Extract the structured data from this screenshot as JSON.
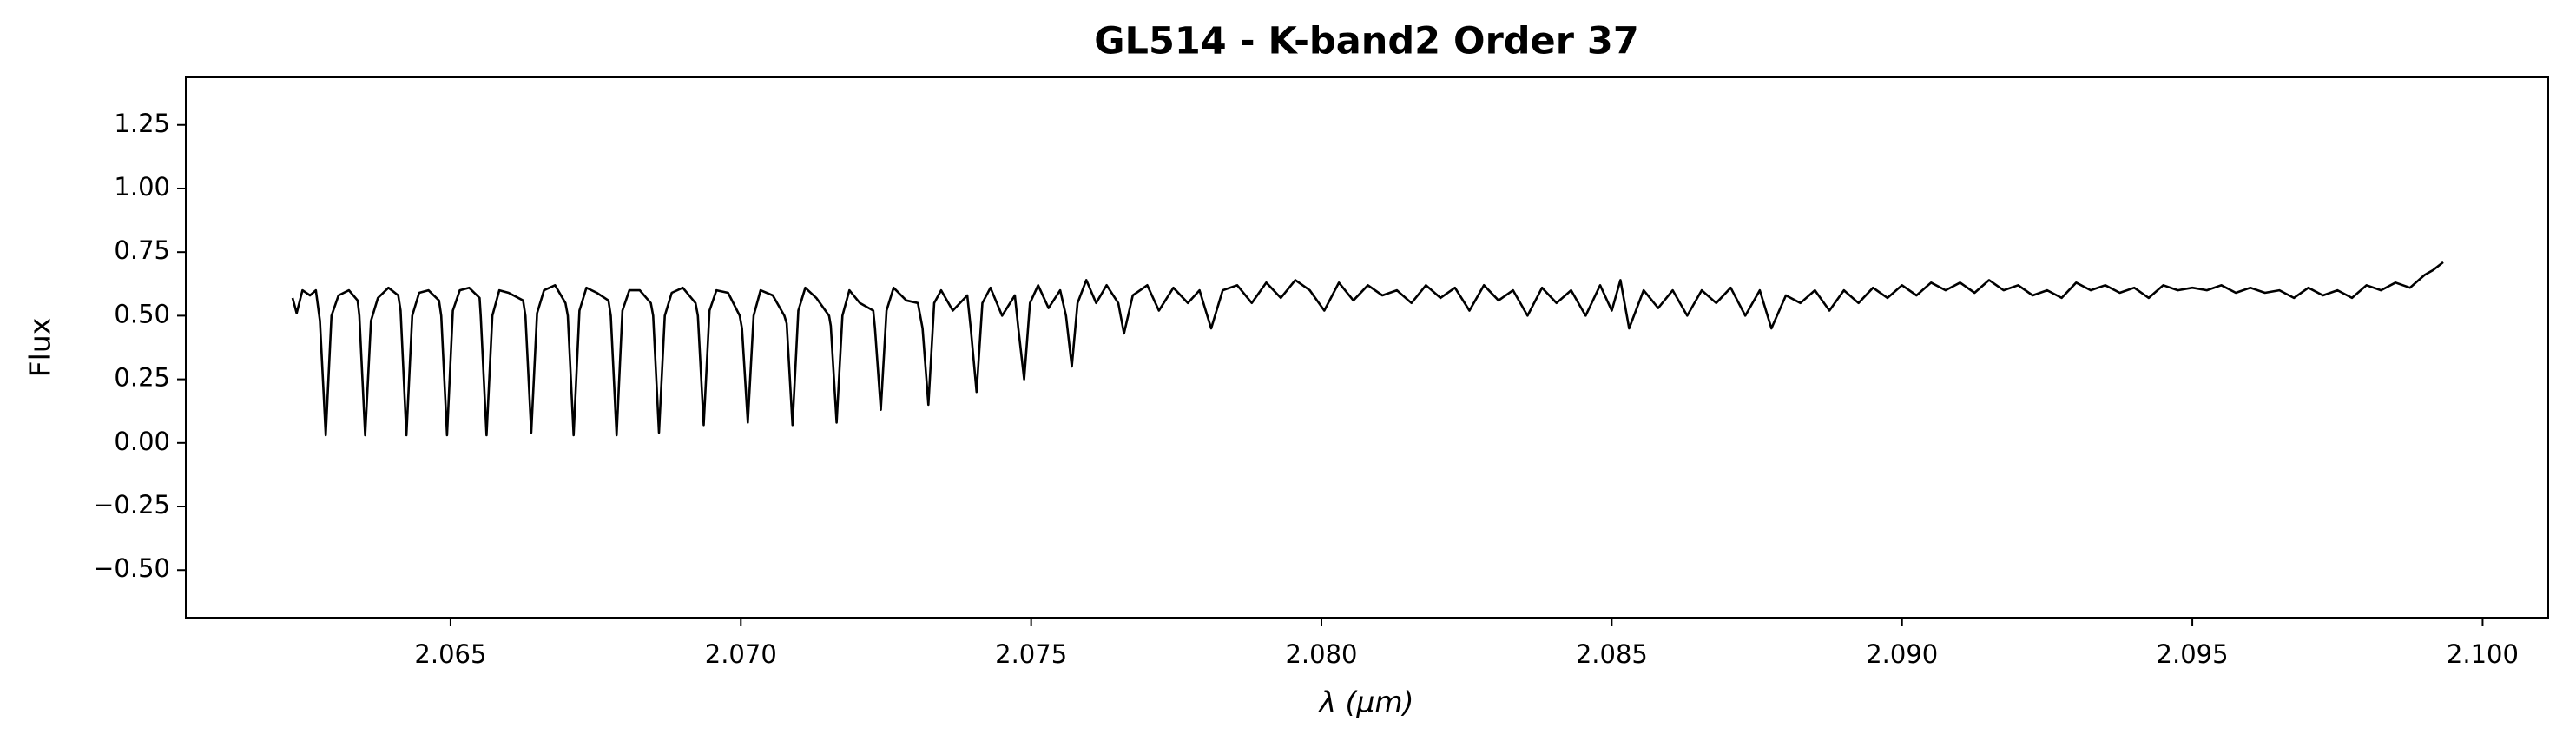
{
  "chart_data": {
    "type": "line",
    "title": "GL514 - K-band2 Order 37",
    "xlabel": "λ (μm)",
    "ylabel": "Flux",
    "color": "#000000",
    "xlim": [
      2.06044,
      2.10113
    ],
    "ylim": [
      -0.687,
      1.437
    ],
    "xticks": [
      2.065,
      {
        "value": 2.07,
        "label": "2.070"
      },
      2.075,
      {
        "value": 2.08,
        "label": "2.080"
      },
      2.085,
      {
        "value": 2.09,
        "label": "2.090"
      },
      2.095,
      {
        "value": 2.1,
        "label": "2.100"
      }
    ],
    "yticks": [
      {
        "value": -0.5,
        "label": "−0.50"
      },
      {
        "value": -0.25,
        "label": "−0.25"
      },
      {
        "value": 0,
        "label": "0.00"
      },
      0.25,
      {
        "value": 0.5,
        "label": "0.50"
      },
      0.75,
      {
        "value": 1,
        "label": "1.00"
      },
      1.25
    ],
    "x": [
      2.06228,
      2.06235,
      2.06245,
      2.06258,
      2.06268,
      2.06275,
      2.06285,
      2.06295,
      2.06307,
      2.06325,
      2.0634,
      2.06343,
      2.06353,
      2.06363,
      2.06375,
      2.06393,
      2.0641,
      2.06414,
      2.06424,
      2.06434,
      2.06446,
      2.06462,
      2.0648,
      2.06484,
      2.06494,
      2.06504,
      2.06516,
      2.06532,
      2.0655,
      2.06552,
      2.06562,
      2.06572,
      2.06584,
      2.066,
      2.06625,
      2.06629,
      2.06639,
      2.06649,
      2.06661,
      2.0668,
      2.06698,
      2.06702,
      2.06712,
      2.06722,
      2.06734,
      2.06752,
      2.06772,
      2.06776,
      2.06786,
      2.06796,
      2.06808,
      2.06826,
      2.06845,
      2.06849,
      2.06859,
      2.06869,
      2.06881,
      2.069,
      2.06922,
      2.06926,
      2.06936,
      2.06946,
      2.06958,
      2.06978,
      2.06998,
      2.07002,
      2.07012,
      2.07022,
      2.07034,
      2.07055,
      2.07075,
      2.07079,
      2.07089,
      2.07099,
      2.07111,
      2.0713,
      2.07152,
      2.07155,
      2.07165,
      2.07175,
      2.07187,
      2.07205,
      2.07228,
      2.07231,
      2.07241,
      2.07251,
      2.07263,
      2.07285,
      2.07305,
      2.07313,
      2.07323,
      2.07333,
      2.07345,
      2.07365,
      2.0739,
      2.07396,
      2.07406,
      2.07416,
      2.0743,
      2.0745,
      2.07472,
      2.07478,
      2.07488,
      2.07498,
      2.07512,
      2.0753,
      2.0755,
      2.0756,
      2.0757,
      2.0758,
      2.07595,
      2.07612,
      2.0763,
      2.0765,
      2.0766,
      2.07675,
      2.077,
      2.0772,
      2.07745,
      2.0777,
      2.0779,
      2.0781,
      2.0783,
      2.07855,
      2.0788,
      2.07905,
      2.0793,
      2.07955,
      2.0798,
      2.08005,
      2.0803,
      2.08055,
      2.0808,
      2.08105,
      2.0813,
      2.08155,
      2.0818,
      2.08205,
      2.0823,
      2.08255,
      2.0828,
      2.08305,
      2.0833,
      2.08355,
      2.0838,
      2.08405,
      2.0843,
      2.08455,
      2.0848,
      2.085,
      2.08515,
      2.0853,
      2.08555,
      2.0858,
      2.08605,
      2.0863,
      2.08655,
      2.0868,
      2.08705,
      2.0873,
      2.08755,
      2.08775,
      2.088,
      2.08825,
      2.0885,
      2.08875,
      2.089,
      2.08925,
      2.0895,
      2.08975,
      2.09,
      2.09025,
      2.0905,
      2.09075,
      2.091,
      2.09125,
      2.0915,
      2.09175,
      2.092,
      2.09225,
      2.0925,
      2.09275,
      2.093,
      2.09325,
      2.0935,
      2.09375,
      2.094,
      2.09425,
      2.0945,
      2.09475,
      2.095,
      2.09525,
      2.0955,
      2.09575,
      2.096,
      2.09625,
      2.0965,
      2.09675,
      2.097,
      2.09725,
      2.0975,
      2.09775,
      2.098,
      2.09825,
      2.0985,
      2.09875,
      2.099,
      2.09915,
      2.09932
    ],
    "values": [
      0.57,
      0.51,
      0.6,
      0.58,
      0.6,
      0.48,
      0.03,
      0.5,
      0.58,
      0.6,
      0.56,
      0.5,
      0.03,
      0.48,
      0.57,
      0.61,
      0.58,
      0.52,
      0.03,
      0.5,
      0.59,
      0.6,
      0.56,
      0.5,
      0.03,
      0.52,
      0.6,
      0.61,
      0.57,
      0.5,
      0.03,
      0.5,
      0.6,
      0.59,
      0.56,
      0.5,
      0.04,
      0.51,
      0.6,
      0.62,
      0.55,
      0.5,
      0.03,
      0.52,
      0.61,
      0.59,
      0.56,
      0.5,
      0.03,
      0.52,
      0.6,
      0.6,
      0.55,
      0.5,
      0.04,
      0.5,
      0.59,
      0.61,
      0.55,
      0.5,
      0.07,
      0.52,
      0.6,
      0.59,
      0.5,
      0.45,
      0.08,
      0.5,
      0.6,
      0.58,
      0.5,
      0.47,
      0.07,
      0.52,
      0.61,
      0.57,
      0.5,
      0.46,
      0.08,
      0.5,
      0.6,
      0.55,
      0.52,
      0.45,
      0.13,
      0.52,
      0.61,
      0.56,
      0.55,
      0.45,
      0.15,
      0.55,
      0.6,
      0.52,
      0.58,
      0.45,
      0.2,
      0.55,
      0.61,
      0.5,
      0.58,
      0.45,
      0.25,
      0.55,
      0.62,
      0.53,
      0.6,
      0.5,
      0.3,
      0.55,
      0.64,
      0.55,
      0.62,
      0.55,
      0.43,
      0.58,
      0.62,
      0.52,
      0.61,
      0.55,
      0.6,
      0.45,
      0.6,
      0.62,
      0.55,
      0.63,
      0.57,
      0.64,
      0.6,
      0.52,
      0.63,
      0.56,
      0.62,
      0.58,
      0.6,
      0.55,
      0.62,
      0.57,
      0.61,
      0.52,
      0.62,
      0.56,
      0.6,
      0.5,
      0.61,
      0.55,
      0.6,
      0.5,
      0.62,
      0.52,
      0.64,
      0.45,
      0.6,
      0.53,
      0.6,
      0.5,
      0.6,
      0.55,
      0.61,
      0.5,
      0.6,
      0.45,
      0.58,
      0.55,
      0.6,
      0.52,
      0.6,
      0.55,
      0.61,
      0.57,
      0.62,
      0.58,
      0.63,
      0.6,
      0.63,
      0.59,
      0.64,
      0.6,
      0.62,
      0.58,
      0.6,
      0.57,
      0.63,
      0.6,
      0.62,
      0.59,
      0.61,
      0.57,
      0.62,
      0.6,
      0.61,
      0.6,
      0.62,
      0.59,
      0.61,
      0.59,
      0.6,
      0.57,
      0.61,
      0.58,
      0.6,
      0.57,
      0.62,
      0.6,
      0.63,
      0.61,
      0.66,
      0.68,
      0.71
    ]
  }
}
